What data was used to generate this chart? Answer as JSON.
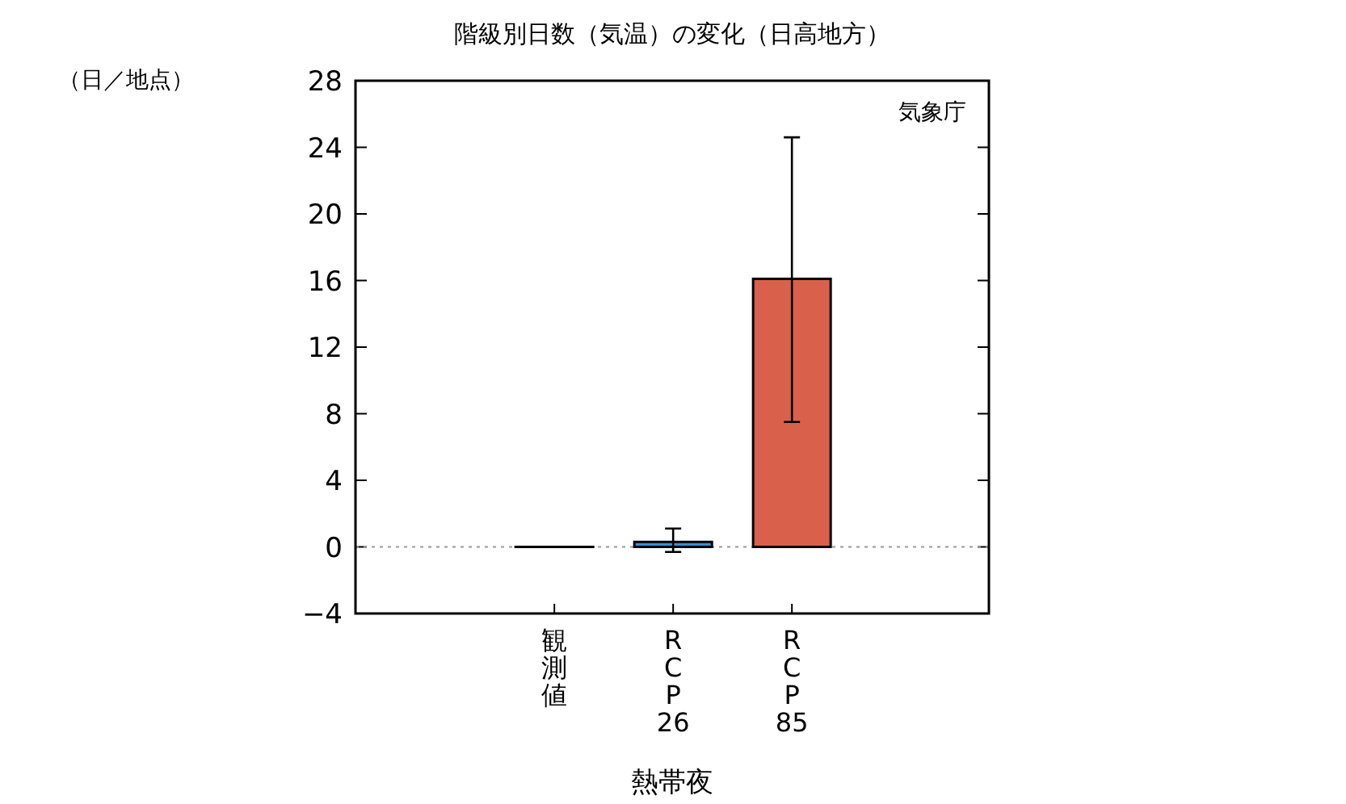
{
  "chart_data": {
    "type": "bar",
    "title": "階級別日数（気温）の変化（日高地方）",
    "ylabel": "（日／地点）",
    "xlabel": "熱帯夜",
    "categories": [
      "観測値",
      "RCP26",
      "RCP85"
    ],
    "values": [
      0,
      0.3,
      16.1
    ],
    "colors": [
      "#3a8fd0",
      "#3a8fd0",
      "#d9614c"
    ],
    "errors": [
      null,
      [
        -0.3,
        1.1
      ],
      [
        7.5,
        24.6
      ]
    ],
    "ylim": [
      -4,
      28
    ],
    "yticks": [
      -4,
      0,
      4,
      8,
      12,
      16,
      20,
      24,
      28
    ],
    "ref_lines": [
      {
        "axis": "y",
        "value": 0,
        "color": "#999999",
        "line_style": "dotted"
      }
    ],
    "annotations": [
      "気象庁"
    ],
    "grid": false
  }
}
